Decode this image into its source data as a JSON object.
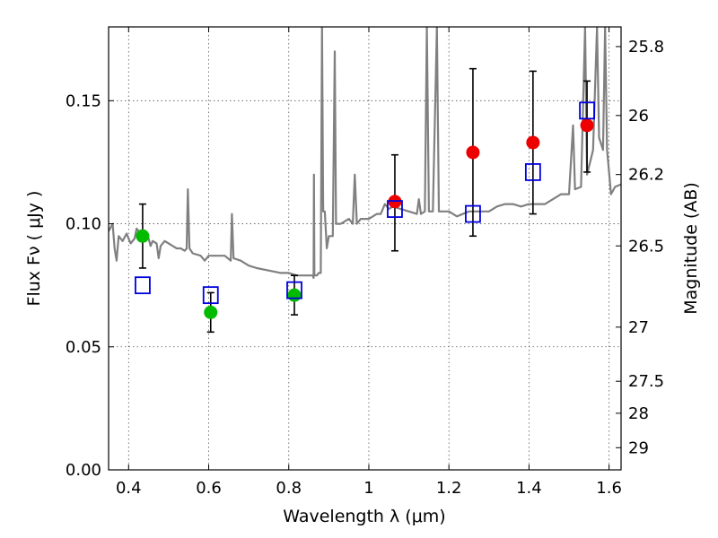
{
  "chart_data": {
    "type": "scatter",
    "xlabel": "Wavelength  λ (μm)",
    "ylabel": "Flux  Fν  ( μJy )",
    "y2label": "Magnitude (AB)",
    "xlim": [
      0.35,
      1.63
    ],
    "ylim": [
      0.0,
      0.18
    ],
    "grid": true,
    "x_ticks": [
      0.4,
      0.6,
      0.8,
      1.0,
      1.2,
      1.4,
      1.6
    ],
    "x_tick_labels": [
      "0.4",
      "0.6",
      "0.8",
      "1",
      "1.2",
      "1.4",
      "1.6"
    ],
    "y_ticks": [
      0.0,
      0.05,
      0.1,
      0.15
    ],
    "y_tick_labels": [
      "0.00",
      "0.05",
      "0.10",
      "0.15"
    ],
    "mag_ticks": [
      {
        "label": "25.8",
        "flux": 0.172
      },
      {
        "label": "26",
        "flux": 0.144
      },
      {
        "label": "26.2",
        "flux": 0.12
      },
      {
        "label": "26.5",
        "flux": 0.091
      },
      {
        "label": "27",
        "flux": 0.058
      },
      {
        "label": "27.5",
        "flux": 0.036
      },
      {
        "label": "28",
        "flux": 0.023
      },
      {
        "label": "29",
        "flux": 0.009
      }
    ],
    "series": [
      {
        "marker": "circle",
        "color": "#00bb00",
        "points": [
          {
            "x": 0.435,
            "y": 0.095,
            "err": [
              0.082,
              0.108
            ]
          },
          {
            "x": 0.605,
            "y": 0.064,
            "err": [
              0.056,
              0.072
            ]
          },
          {
            "x": 0.814,
            "y": 0.071,
            "err": [
              0.063,
              0.079
            ]
          }
        ]
      },
      {
        "marker": "circle",
        "color": "#ee0000",
        "points": [
          {
            "x": 1.065,
            "y": 0.109,
            "err": [
              0.089,
              0.128
            ]
          },
          {
            "x": 1.26,
            "y": 0.129,
            "err": [
              0.095,
              0.163
            ]
          },
          {
            "x": 1.41,
            "y": 0.133,
            "err": [
              0.104,
              0.162
            ]
          },
          {
            "x": 1.545,
            "y": 0.14,
            "err": [
              0.121,
              0.158
            ]
          }
        ]
      },
      {
        "marker": "square",
        "color": "#0000dd",
        "points": [
          {
            "x": 0.435,
            "y": 0.075
          },
          {
            "x": 0.605,
            "y": 0.071
          },
          {
            "x": 0.814,
            "y": 0.073
          },
          {
            "x": 1.065,
            "y": 0.106
          },
          {
            "x": 1.26,
            "y": 0.104
          },
          {
            "x": 1.41,
            "y": 0.121
          },
          {
            "x": 1.545,
            "y": 0.146
          }
        ]
      }
    ],
    "spectrum": {
      "color": "#808080",
      "points": [
        [
          0.35,
          0.097
        ],
        [
          0.36,
          0.1
        ],
        [
          0.365,
          0.09
        ],
        [
          0.37,
          0.085
        ],
        [
          0.375,
          0.095
        ],
        [
          0.385,
          0.093
        ],
        [
          0.395,
          0.096
        ],
        [
          0.405,
          0.092
        ],
        [
          0.415,
          0.094
        ],
        [
          0.42,
          0.098
        ],
        [
          0.43,
          0.096
        ],
        [
          0.44,
          0.095
        ],
        [
          0.45,
          0.094
        ],
        [
          0.455,
          0.091
        ],
        [
          0.46,
          0.093
        ],
        [
          0.47,
          0.092
        ],
        [
          0.475,
          0.086
        ],
        [
          0.48,
          0.091
        ],
        [
          0.49,
          0.093
        ],
        [
          0.5,
          0.092
        ],
        [
          0.51,
          0.091
        ],
        [
          0.52,
          0.09
        ],
        [
          0.53,
          0.09
        ],
        [
          0.54,
          0.089
        ],
        [
          0.545,
          0.09
        ],
        [
          0.548,
          0.114
        ],
        [
          0.552,
          0.09
        ],
        [
          0.56,
          0.088
        ],
        [
          0.58,
          0.087
        ],
        [
          0.59,
          0.085
        ],
        [
          0.6,
          0.087
        ],
        [
          0.62,
          0.087
        ],
        [
          0.64,
          0.087
        ],
        [
          0.655,
          0.085
        ],
        [
          0.658,
          0.104
        ],
        [
          0.662,
          0.086
        ],
        [
          0.68,
          0.085
        ],
        [
          0.7,
          0.083
        ],
        [
          0.72,
          0.082
        ],
        [
          0.75,
          0.081
        ],
        [
          0.78,
          0.08
        ],
        [
          0.8,
          0.08
        ],
        [
          0.82,
          0.079
        ],
        [
          0.84,
          0.079
        ],
        [
          0.86,
          0.079
        ],
        [
          0.862,
          0.078
        ],
        [
          0.863,
          0.12
        ],
        [
          0.864,
          0.079
        ],
        [
          0.87,
          0.079
        ],
        [
          0.875,
          0.08
        ],
        [
          0.88,
          0.08
        ],
        [
          0.883,
          0.18
        ],
        [
          0.886,
          0.105
        ],
        [
          0.89,
          0.105
        ],
        [
          0.895,
          0.09
        ],
        [
          0.9,
          0.095
        ],
        [
          0.91,
          0.095
        ],
        [
          0.915,
          0.17
        ],
        [
          0.918,
          0.1
        ],
        [
          0.93,
          0.1
        ],
        [
          0.95,
          0.102
        ],
        [
          0.96,
          0.1
        ],
        [
          0.965,
          0.12
        ],
        [
          0.97,
          0.1
        ],
        [
          0.98,
          0.102
        ],
        [
          1.0,
          0.102
        ],
        [
          1.02,
          0.104
        ],
        [
          1.03,
          0.104
        ],
        [
          1.04,
          0.108
        ],
        [
          1.05,
          0.106
        ],
        [
          1.06,
          0.107
        ],
        [
          1.08,
          0.106
        ],
        [
          1.1,
          0.105
        ],
        [
          1.12,
          0.104
        ],
        [
          1.125,
          0.11
        ],
        [
          1.13,
          0.104
        ],
        [
          1.14,
          0.105
        ],
        [
          1.145,
          0.18
        ],
        [
          1.15,
          0.105
        ],
        [
          1.16,
          0.105
        ],
        [
          1.17,
          0.18
        ],
        [
          1.175,
          0.105
        ],
        [
          1.18,
          0.105
        ],
        [
          1.2,
          0.105
        ],
        [
          1.22,
          0.103
        ],
        [
          1.25,
          0.105
        ],
        [
          1.28,
          0.105
        ],
        [
          1.3,
          0.105
        ],
        [
          1.32,
          0.107
        ],
        [
          1.34,
          0.108
        ],
        [
          1.36,
          0.108
        ],
        [
          1.38,
          0.107
        ],
        [
          1.4,
          0.108
        ],
        [
          1.42,
          0.108
        ],
        [
          1.44,
          0.108
        ],
        [
          1.46,
          0.11
        ],
        [
          1.48,
          0.112
        ],
        [
          1.5,
          0.112
        ],
        [
          1.51,
          0.14
        ],
        [
          1.515,
          0.114
        ],
        [
          1.53,
          0.115
        ],
        [
          1.54,
          0.18
        ],
        [
          1.545,
          0.12
        ],
        [
          1.56,
          0.13
        ],
        [
          1.57,
          0.18
        ],
        [
          1.575,
          0.135
        ],
        [
          1.585,
          0.13
        ],
        [
          1.59,
          0.18
        ],
        [
          1.595,
          0.13
        ],
        [
          1.605,
          0.112
        ],
        [
          1.615,
          0.115
        ],
        [
          1.63,
          0.116
        ]
      ]
    }
  }
}
